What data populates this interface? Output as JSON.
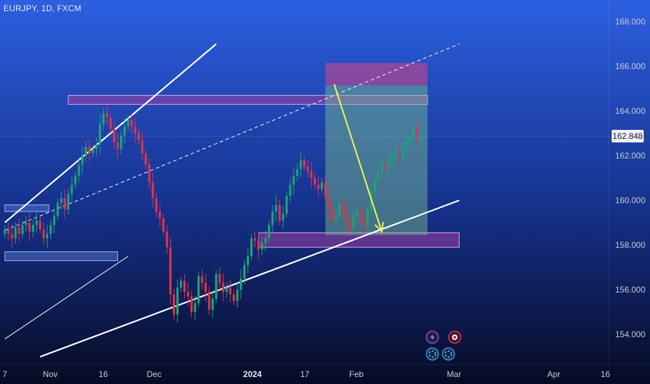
{
  "header": {
    "symbol_line": "EURJPY, 1D, FXCM"
  },
  "current_price": {
    "label": "162.848",
    "value": 162.848,
    "color": "#e3e6ee"
  },
  "colors": {
    "up": "#1fa37a",
    "down": "#e0334a",
    "channel": "#ffffff",
    "zone": "#9c3fa3",
    "target_zone": "#7cc48f",
    "stop_zone": "#b24691",
    "arrow": "#f1f75a"
  },
  "indicators": {
    "icons": [
      "lightning-icon",
      "record-icon",
      "spiral-icon",
      "spiral-icon"
    ]
  },
  "chart_data": {
    "type": "candlestick",
    "title": "",
    "symbol": "EURJPY",
    "timeframe": "1D",
    "source": "FXCM",
    "ylim": [
      153.0,
      169.0
    ],
    "y_ticks": [
      154,
      156,
      158,
      160,
      162,
      164,
      166,
      168
    ],
    "y_tick_labels": [
      "154.000",
      "156.000",
      "158.000",
      "160.000",
      "162.000",
      "164.000",
      "166.000",
      "168.000"
    ],
    "x_ticks": [
      {
        "label": "7",
        "bold": false
      },
      {
        "label": "Nov",
        "bold": false
      },
      {
        "label": "16",
        "bold": false
      },
      {
        "label": "Dec",
        "bold": false
      },
      {
        "label": "2024",
        "bold": true
      },
      {
        "label": "17",
        "bold": false
      },
      {
        "label": "Feb",
        "bold": false
      },
      {
        "label": "Mar",
        "bold": false
      },
      {
        "label": "Apr",
        "bold": false
      },
      {
        "label": "16",
        "bold": false
      }
    ],
    "closes": [
      158.7,
      158.5,
      158.3,
      158.8,
      158.5,
      158.9,
      159.0,
      158.6,
      158.9,
      159.1,
      158.7,
      158.3,
      158.5,
      158.9,
      159.3,
      159.9,
      160.1,
      159.6,
      160.3,
      160.7,
      161.1,
      161.6,
      162.0,
      162.4,
      162.1,
      162.3,
      162.5,
      163.4,
      163.9,
      163.7,
      163.2,
      162.6,
      162.3,
      162.9,
      163.3,
      163.6,
      163.3,
      163.0,
      162.7,
      162.1,
      161.6,
      160.8,
      160.1,
      159.5,
      159.2,
      158.6,
      157.9,
      155.8,
      154.9,
      156.1,
      156.4,
      155.9,
      155.7,
      155.0,
      155.4,
      156.6,
      156.3,
      155.9,
      155.1,
      155.6,
      156.7,
      156.3,
      155.9,
      156.1,
      155.8,
      155.5,
      156.0,
      156.5,
      157.1,
      157.5,
      158.3,
      158.2,
      157.8,
      158.1,
      158.3,
      158.9,
      159.5,
      159.8,
      159.1,
      159.4,
      160.2,
      160.7,
      161.1,
      161.4,
      161.8,
      161.5,
      161.3,
      161.0,
      160.7,
      160.5,
      160.8,
      160.2,
      159.6,
      159.1,
      159.3,
      159.8,
      159.5,
      159.0,
      158.8,
      159.3,
      159.5,
      159.2,
      158.9,
      159.6,
      160.4,
      160.9,
      161.3,
      161.6,
      161.5,
      161.7,
      161.9,
      162.1,
      162.0,
      162.4,
      162.6,
      162.9,
      163.2,
      162.8,
      162.85
    ],
    "channel_upper": [
      [
        0.0,
        159.01
      ],
      [
        60.0,
        167.0
      ]
    ],
    "channel_lower": [
      [
        10.0,
        153.0
      ],
      [
        129.0,
        160.0
      ]
    ],
    "channel_mid": [
      [
        0.0,
        158.66
      ],
      [
        129.0,
        167.0
      ]
    ],
    "inner_line": [
      [
        0.0,
        153.8
      ],
      [
        35.0,
        157.5
      ]
    ],
    "resistance_zone": {
      "x0": 18.0,
      "x1": 120.0,
      "y0": 164.3,
      "y1": 164.7
    },
    "support_zone": {
      "x0": 72.0,
      "x1": 129.0,
      "y0": 157.9,
      "y1": 158.55
    },
    "left_zone_upper": {
      "x0": 0.0,
      "x1": 12.5,
      "y0": 159.5,
      "y1": 159.8
    },
    "left_zone_lower": {
      "x0": 0.0,
      "x1": 32.0,
      "y0": 157.3,
      "y1": 157.7
    },
    "position": {
      "x0": 91.0,
      "x1": 120.0,
      "stop_top": 166.15,
      "entry": 165.15,
      "target": 158.45
    },
    "projection_arrow": {
      "from": [
        93.5,
        165.2
      ],
      "to": [
        107.0,
        158.6
      ]
    }
  }
}
